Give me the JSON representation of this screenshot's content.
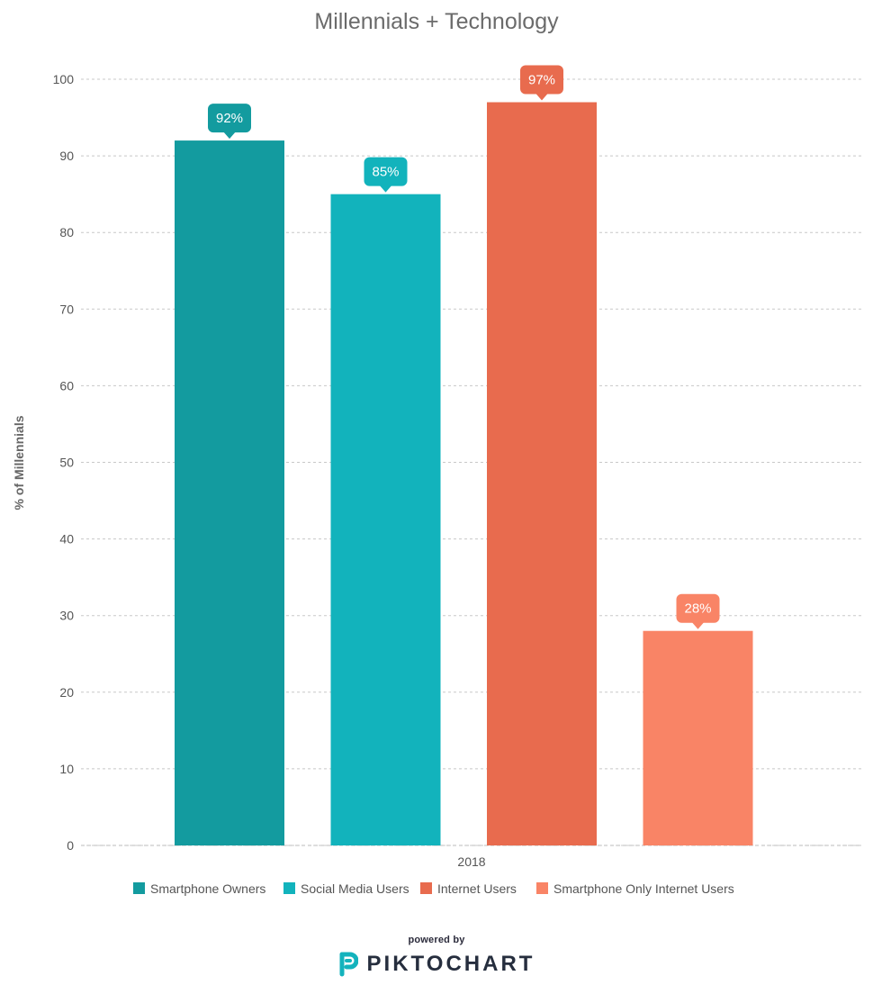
{
  "chart_data": {
    "type": "bar",
    "title": "Millennials + Technology",
    "ylabel": "% of Millennials",
    "xlabel": "",
    "categories": [
      "2018"
    ],
    "ylim": [
      0,
      100
    ],
    "yticks": [
      0,
      10,
      20,
      30,
      40,
      50,
      60,
      70,
      80,
      90,
      100
    ],
    "grid": true,
    "legend_position": "bottom",
    "series": [
      {
        "name": "Smartphone Owners",
        "values": [
          92
        ],
        "label": "92%",
        "color": "#139b9f"
      },
      {
        "name": "Social Media Users",
        "values": [
          85
        ],
        "label": "85%",
        "color": "#12b3bc"
      },
      {
        "name": "Internet Users",
        "values": [
          97
        ],
        "label": "97%",
        "color": "#e86b4e"
      },
      {
        "name": "Smartphone Only Internet Users",
        "values": [
          28
        ],
        "label": "28%",
        "color": "#f98466"
      }
    ]
  },
  "footer": {
    "powered_by": "powered by",
    "brand": "PIKTOCHART"
  }
}
